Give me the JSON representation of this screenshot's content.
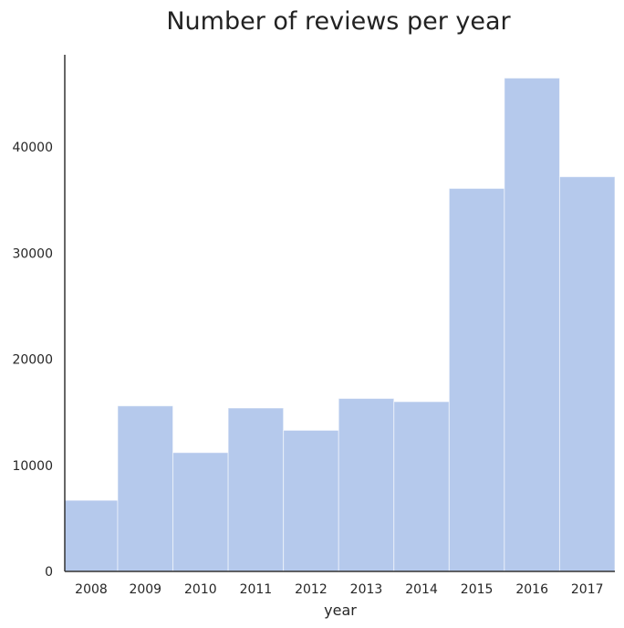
{
  "chart_data": {
    "type": "bar",
    "title": "Number of reviews per year",
    "xlabel": "year",
    "ylabel": "",
    "categories": [
      "2008",
      "2009",
      "2010",
      "2011",
      "2012",
      "2013",
      "2014",
      "2015",
      "2016",
      "2017"
    ],
    "values": [
      6700,
      15600,
      11200,
      15400,
      13300,
      16300,
      16000,
      36100,
      46500,
      37200
    ],
    "ylim": [
      0,
      48700
    ],
    "yticks": [
      0,
      10000,
      20000,
      30000,
      40000
    ],
    "grid": false,
    "bar_color": "#b5c9ec"
  }
}
